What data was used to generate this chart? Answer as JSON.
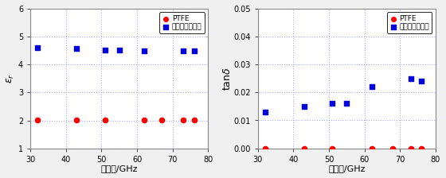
{
  "left": {
    "ptfe_x": [
      32,
      43,
      51,
      62,
      67,
      73,
      76
    ],
    "ptfe_y": [
      2.02,
      2.01,
      2.01,
      2.01,
      2.01,
      2.01,
      2.01
    ],
    "glass_x": [
      32,
      43,
      51,
      55,
      62,
      73,
      76
    ],
    "glass_y": [
      4.6,
      4.57,
      4.53,
      4.52,
      4.5,
      4.5,
      4.49
    ],
    "xlabel": "周波数/GHz",
    "ylabel_latex": "$\\varepsilon_r$",
    "xlim": [
      30,
      80
    ],
    "ylim": [
      1,
      6
    ],
    "yticks": [
      1,
      2,
      3,
      4,
      5,
      6
    ],
    "xticks": [
      30,
      40,
      50,
      60,
      70,
      80
    ]
  },
  "right": {
    "ptfe_x": [
      32,
      43,
      51,
      62,
      68,
      73,
      76
    ],
    "ptfe_y": [
      0.0,
      0.0,
      0.0,
      0.0,
      0.0,
      0.0,
      0.0
    ],
    "glass_x": [
      32,
      43,
      51,
      55,
      62,
      73,
      76
    ],
    "glass_y": [
      0.013,
      0.015,
      0.016,
      0.016,
      0.022,
      0.025,
      0.024
    ],
    "xlabel": "周波数/GHz",
    "ylabel_latex": "tan$\\delta$",
    "xlim": [
      30,
      80
    ],
    "ylim": [
      0,
      0.05
    ],
    "yticks": [
      0,
      0.01,
      0.02,
      0.03,
      0.04,
      0.05
    ],
    "xticks": [
      30,
      40,
      50,
      60,
      70,
      80
    ]
  },
  "ptfe_color": "#ff0000",
  "glass_color": "#0000dd",
  "ptfe_label": "PTFE",
  "glass_label": "ガラスエポキシ",
  "grid_color": "#aaaaff",
  "bg_color": "#ffffff",
  "fig_bg_color": "#f0f0f0"
}
